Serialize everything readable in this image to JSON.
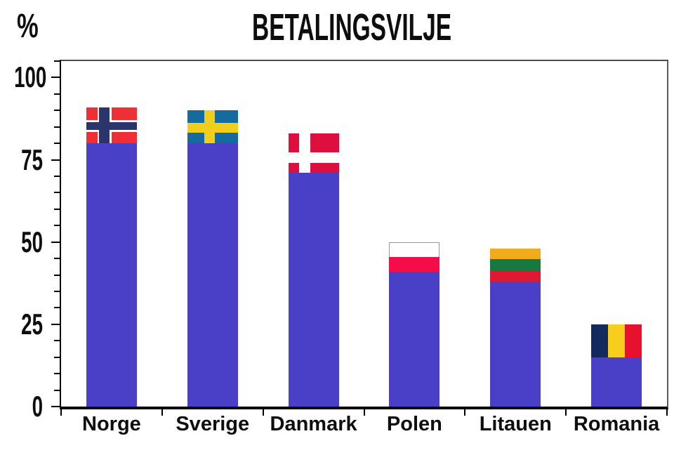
{
  "page": {
    "background_color": "#ffffff"
  },
  "chart_data": {
    "type": "bar",
    "title": "BETALINGSVILJE",
    "ylabel": "%",
    "xlabel": "",
    "ylim": [
      0,
      105
    ],
    "yticks": [
      0,
      25,
      50,
      75,
      100
    ],
    "ytick_labels": [
      "0",
      "25",
      "50",
      "75",
      "100"
    ],
    "minor_tick_step": 5,
    "grid": "off",
    "legend": "none",
    "categories": [
      "Norge",
      "Sverige",
      "Danmark",
      "Polen",
      "Litauen",
      "Romania"
    ],
    "series": [
      {
        "name": "solid-bar-percent",
        "values": [
          80,
          80,
          71,
          41,
          38,
          15
        ]
      },
      {
        "name": "total-percent-top-of-flag",
        "values": [
          91,
          90,
          83,
          50,
          48,
          25
        ]
      }
    ],
    "bar_color": "#4A40C7",
    "note": "Top segment of each bar is drawn as that country's national flag",
    "flags": {
      "norge": {
        "field": "#EE3036",
        "cross_outer": "#FFFFFF",
        "cross_inner": "#2A366B"
      },
      "sverige": {
        "field": "#156A9E",
        "cross": "#F0CE1B"
      },
      "danmark": {
        "field": "#DC0F3E",
        "cross": "#FFFFFF"
      },
      "polen": {
        "top": "#FFFFFF",
        "bottom": "#F50D49",
        "outline": "#999999"
      },
      "litauen": {
        "stripes": [
          "#F2AB1D",
          "#16793F",
          "#DE1A32"
        ]
      },
      "romania": {
        "stripes": [
          "#14295E",
          "#F7CE1B",
          "#E8112D"
        ]
      }
    }
  }
}
